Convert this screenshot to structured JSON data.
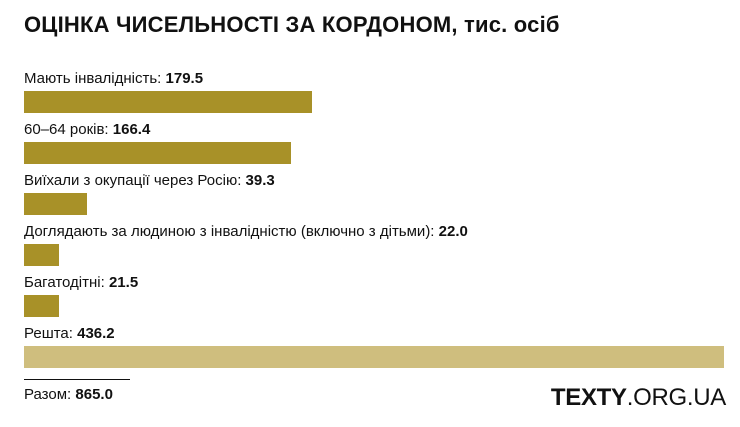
{
  "chart_data": {
    "type": "bar",
    "orientation": "horizontal",
    "title": "ОЦІНКА ЧИСЕЛЬНОСТІ ЗА КОРДОНОМ,",
    "title_unit": "тис. осіб",
    "categories": [
      "Мають інвалідність:",
      "60–64 років:",
      "Виїхали з окупації через Росію:",
      "Доглядають за людиною з інвалідністю (включно з дітьми):",
      "Багатодітні:",
      "Решта:"
    ],
    "values": [
      179.5,
      166.4,
      39.3,
      22.0,
      21.5,
      436.2
    ],
    "value_labels": [
      "179.5",
      "166.4",
      "39.3",
      "22.0",
      "21.5",
      "436.2"
    ],
    "xlim": [
      0,
      436.2
    ],
    "grid": false,
    "bar_colors": [
      "#a89128",
      "#a89128",
      "#a89128",
      "#a89128",
      "#a89128",
      "#cfbe7e"
    ],
    "total_label": "Разом:",
    "total_value": "865.0"
  },
  "branding": {
    "logo_bold": "TEXTY",
    "logo_light": ".ORG.UA"
  }
}
